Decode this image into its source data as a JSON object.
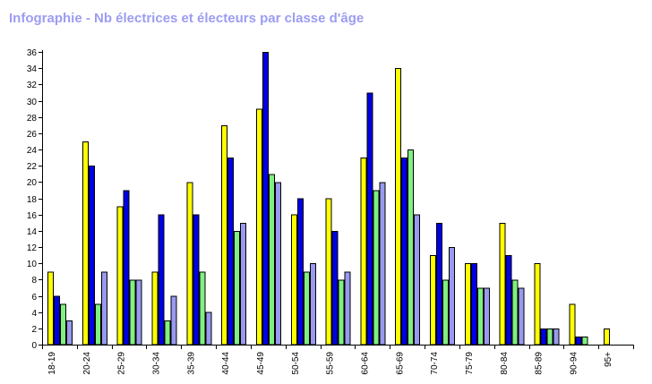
{
  "page": {
    "title": "Infographie - Nb électrices et électeurs par classe d'âge"
  },
  "colors": {
    "title": "#9c9cf4",
    "axis": "#000000"
  },
  "chart_data": {
    "type": "bar",
    "title": "Infographie - Nb électrices et électeurs par classe d'âge",
    "xlabel": "",
    "ylabel": "",
    "ylim": [
      0,
      36
    ],
    "yticks": [
      0,
      2,
      4,
      6,
      8,
      10,
      12,
      14,
      16,
      18,
      20,
      22,
      24,
      26,
      28,
      30,
      32,
      34,
      36
    ],
    "grid": false,
    "legend": "none",
    "categories": [
      "18-19",
      "20-24",
      "25-29",
      "30-34",
      "35-39",
      "40-44",
      "45-49",
      "50-54",
      "55-59",
      "60-64",
      "65-69",
      "70-74",
      "75-79",
      "80-84",
      "85-89",
      "90-94",
      "95+"
    ],
    "series": [
      {
        "color": "#ffff00",
        "values": [
          9,
          25,
          17,
          9,
          20,
          27,
          29,
          16,
          18,
          23,
          34,
          11,
          10,
          15,
          10,
          5,
          2
        ]
      },
      {
        "color": "#0000e6",
        "values": [
          6,
          22,
          19,
          16,
          16,
          23,
          36,
          18,
          14,
          31,
          23,
          15,
          10,
          11,
          2,
          1,
          0
        ]
      },
      {
        "color": "#80f080",
        "values": [
          5,
          5,
          8,
          3,
          9,
          14,
          21,
          9,
          8,
          19,
          24,
          8,
          7,
          8,
          2,
          1,
          0
        ]
      },
      {
        "color": "#9999f0",
        "values": [
          3,
          9,
          8,
          6,
          4,
          15,
          20,
          10,
          9,
          20,
          16,
          12,
          7,
          7,
          2,
          0,
          0
        ]
      }
    ]
  }
}
